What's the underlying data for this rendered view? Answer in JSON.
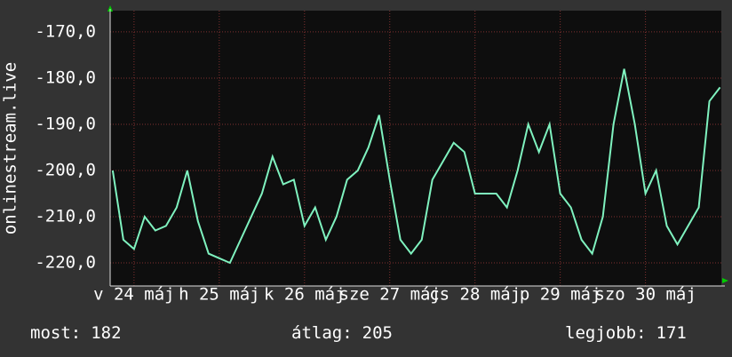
{
  "chart_data": {
    "type": "line",
    "ylabel": "onlinestream.live",
    "x": [
      23.75,
      23.875,
      24.0,
      24.125,
      24.25,
      24.375,
      24.5,
      24.625,
      24.75,
      24.875,
      25.0,
      25.125,
      25.25,
      25.375,
      25.5,
      25.625,
      25.75,
      25.875,
      26.0,
      26.125,
      26.25,
      26.375,
      26.5,
      26.625,
      26.75,
      26.875,
      27.0,
      27.125,
      27.25,
      27.375,
      27.5,
      27.625,
      27.75,
      27.875,
      28.0,
      28.125,
      28.25,
      28.375,
      28.5,
      28.625,
      28.75,
      28.875,
      29.0,
      29.125,
      29.25,
      29.375,
      29.5,
      29.625,
      29.75,
      29.875,
      30.0,
      30.125,
      30.25,
      30.375,
      30.5,
      30.625,
      30.75,
      30.875
    ],
    "series": [
      {
        "color": "#7ff2bf",
        "values": [
          -200,
          -215,
          -217,
          -210,
          -213,
          -212,
          -208,
          -200,
          -211,
          -218,
          -219,
          -220,
          -215,
          -210,
          -205,
          -197,
          -203,
          -202,
          -212,
          -208,
          -215,
          -210,
          -202,
          -200,
          -195,
          -188,
          -202,
          -215,
          -218,
          -215,
          -202,
          -198,
          -194,
          -196,
          -205,
          -205,
          -205,
          -208,
          -200,
          -190,
          -196,
          -190,
          -205,
          -208,
          -215,
          -218,
          -210,
          -190,
          -178,
          -190,
          -205,
          -200,
          -212,
          -216,
          -212,
          -208,
          -185,
          -182
        ]
      }
    ],
    "xlim": [
      23.72,
      30.89
    ],
    "xticks": [
      {
        "value": 24,
        "label": "v 24 máj"
      },
      {
        "value": 25,
        "label": "h 25 máj"
      },
      {
        "value": 26,
        "label": "k 26 máj"
      },
      {
        "value": 27,
        "label": "sze 27 máj"
      },
      {
        "value": 28,
        "label": "cs 28 máj"
      },
      {
        "value": 29,
        "label": "p 29 máj"
      },
      {
        "value": 30,
        "label": "szo 30 máj"
      }
    ],
    "ylim": [
      -225,
      -165.4
    ],
    "yticks": [
      {
        "value": -170,
        "label": "-170,0"
      },
      {
        "value": -180,
        "label": "-180,0"
      },
      {
        "value": -190,
        "label": "-190,0"
      },
      {
        "value": -200,
        "label": "-200,0"
      },
      {
        "value": -210,
        "label": "-210,0"
      },
      {
        "value": -220,
        "label": "-220,0"
      }
    ],
    "grid": true,
    "stats": [
      {
        "label": "most:",
        "value": 182
      },
      {
        "label": "átlag:",
        "value": 205
      },
      {
        "label": "legjobb:",
        "value": 171
      }
    ]
  }
}
